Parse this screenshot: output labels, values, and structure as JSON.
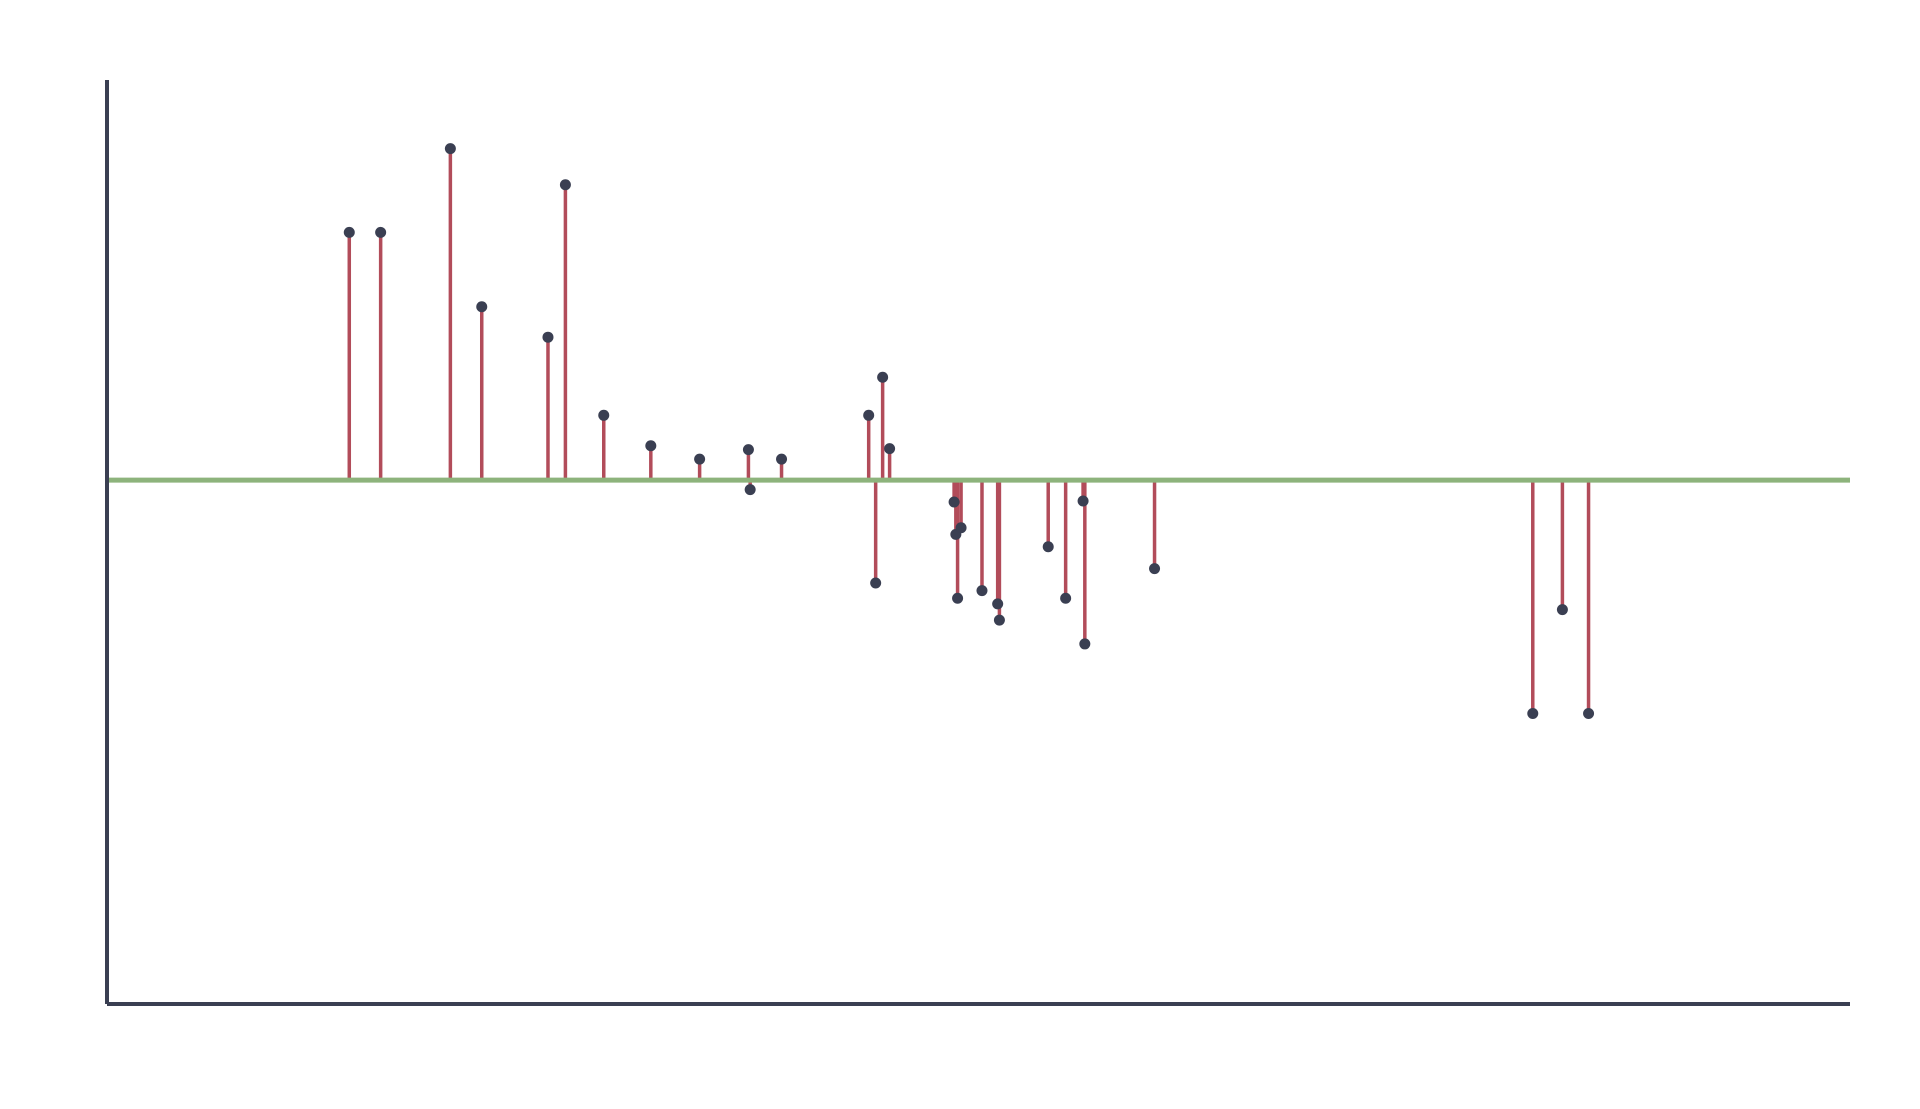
{
  "chart_data": {
    "type": "stem",
    "title": "",
    "xlabel": "",
    "ylabel": "",
    "grid": false,
    "legend": "none",
    "xlim": [
      0,
      100
    ],
    "ylim": [
      -5.5,
      4.2
    ],
    "baseline": 0,
    "x": [
      13.9,
      15.7,
      19.7,
      21.5,
      25.3,
      26.3,
      28.5,
      31.2,
      34.0,
      36.8,
      36.9,
      38.7,
      43.7,
      44.1,
      44.5,
      44.9,
      48.6,
      48.7,
      48.8,
      49.0,
      50.2,
      51.1,
      51.2,
      54.0,
      55.0,
      56.0,
      56.1,
      60.1,
      81.8,
      83.5,
      85.0
    ],
    "values": [
      2.6,
      2.6,
      3.48,
      1.82,
      1.5,
      3.1,
      0.68,
      0.36,
      0.22,
      0.32,
      -0.1,
      0.22,
      0.68,
      -1.08,
      1.08,
      0.33,
      -0.23,
      -0.57,
      -1.24,
      -0.5,
      -1.16,
      -1.3,
      -1.47,
      -0.7,
      -1.24,
      -0.22,
      -1.72,
      -0.93,
      -2.45,
      -1.36,
      -2.45
    ],
    "colors": {
      "stem": "#b24c5a",
      "marker": "#3a3f52",
      "baseline": "#8db37c",
      "axis": "#3a3f52"
    }
  }
}
